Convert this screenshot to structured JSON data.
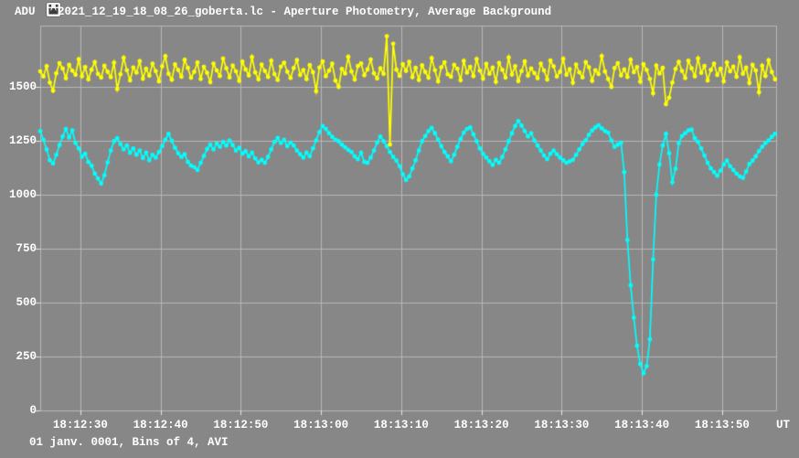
{
  "window": {
    "title": "2021_12_19_18_08_26_goberta.lc - Aperture Photometry, Average Background"
  },
  "axes": {
    "y_unit_label": "ADU",
    "x_unit_label": "UT",
    "y_ticks": [
      {
        "value": 0,
        "label": "0"
      },
      {
        "value": 250,
        "label": "250"
      },
      {
        "value": 500,
        "label": "500"
      },
      {
        "value": 750,
        "label": "750"
      },
      {
        "value": 1000,
        "label": "1000"
      },
      {
        "value": 1250,
        "label": "1250"
      },
      {
        "value": 1500,
        "label": "1500"
      }
    ],
    "x_ticks": [
      {
        "t": 5,
        "label": "18:12:30"
      },
      {
        "t": 15,
        "label": "18:12:40"
      },
      {
        "t": 25,
        "label": "18:12:50"
      },
      {
        "t": 35,
        "label": "18:13:00"
      },
      {
        "t": 45,
        "label": "18:13:10"
      },
      {
        "t": 55,
        "label": "18:13:20"
      },
      {
        "t": 65,
        "label": "18:13:30"
      },
      {
        "t": 75,
        "label": "18:13:40"
      },
      {
        "t": 85,
        "label": "18:13:50"
      }
    ]
  },
  "footer": {
    "text": "01 janv. 0001, Bins of 4, AVI"
  },
  "colors": {
    "background": "#878787",
    "grid": "#b8b8b8",
    "tick": "#e6e6e6",
    "text": "#ffffff",
    "yellow_series": "#ffff00",
    "cyan_series": "#00ffff"
  },
  "chart_data": {
    "type": "line",
    "title": "2021_12_19_18_08_26_goberta.lc - Aperture Photometry, Average Background",
    "xlabel": "UT",
    "ylabel": "ADU",
    "x_origin_time": "18:12:25",
    "dt_seconds": 0.4,
    "xlim": [
      0,
      91.74
    ],
    "ylim": [
      0,
      1784
    ],
    "grid": true,
    "legend": "none",
    "series": [
      {
        "name": "cyan",
        "color": "#00ffff",
        "values": [
          1295,
          1255,
          1210,
          1160,
          1145,
          1185,
          1230,
          1270,
          1305,
          1265,
          1298,
          1240,
          1215,
          1175,
          1190,
          1152,
          1135,
          1098,
          1075,
          1052,
          1090,
          1150,
          1205,
          1248,
          1262,
          1235,
          1210,
          1228,
          1195,
          1215,
          1185,
          1205,
          1170,
          1195,
          1160,
          1185,
          1172,
          1198,
          1225,
          1255,
          1282,
          1250,
          1218,
          1192,
          1175,
          1188,
          1152,
          1135,
          1128,
          1115,
          1148,
          1180,
          1212,
          1232,
          1210,
          1238,
          1222,
          1245,
          1228,
          1252,
          1230,
          1205,
          1218,
          1190,
          1202,
          1178,
          1195,
          1168,
          1150,
          1162,
          1148,
          1175,
          1210,
          1245,
          1263,
          1240,
          1255,
          1225,
          1242,
          1228,
          1205,
          1188,
          1172,
          1195,
          1178,
          1215,
          1252,
          1290,
          1318,
          1305,
          1285,
          1268,
          1255,
          1248,
          1232,
          1220,
          1208,
          1198,
          1178,
          1165,
          1195,
          1152,
          1148,
          1172,
          1205,
          1242,
          1270,
          1248,
          1225,
          1198,
          1175,
          1158,
          1132,
          1095,
          1068,
          1085,
          1122,
          1160,
          1205,
          1248,
          1272,
          1295,
          1310,
          1285,
          1255,
          1225,
          1198,
          1178,
          1155,
          1185,
          1222,
          1258,
          1288,
          1305,
          1312,
          1280,
          1248,
          1215,
          1190,
          1172,
          1155,
          1138,
          1162,
          1148,
          1175,
          1210,
          1248,
          1285,
          1318,
          1342,
          1320,
          1295,
          1270,
          1285,
          1252,
          1228,
          1205,
          1182,
          1165,
          1190,
          1205,
          1188,
          1172,
          1160,
          1148,
          1155,
          1162,
          1185,
          1210,
          1235,
          1252,
          1278,
          1298,
          1312,
          1322,
          1308,
          1295,
          1288,
          1252,
          1222,
          1232,
          1242,
          1105,
          790,
          580,
          430,
          300,
          215,
          172,
          205,
          330,
          700,
          1000,
          1140,
          1228,
          1282,
          1192,
          1058,
          1120,
          1238,
          1272,
          1285,
          1298,
          1302,
          1262,
          1245,
          1215,
          1182,
          1148,
          1122,
          1105,
          1088,
          1112,
          1140,
          1158,
          1132,
          1115,
          1098,
          1085,
          1078,
          1108,
          1142,
          1158,
          1178,
          1202,
          1222,
          1240,
          1252,
          1268,
          1282
        ]
      },
      {
        "name": "yellow",
        "color": "#ffff00",
        "values": [
          1572,
          1548,
          1596,
          1520,
          1482,
          1563,
          1610,
          1585,
          1540,
          1602,
          1575,
          1556,
          1628,
          1549,
          1592,
          1535,
          1580,
          1615,
          1560,
          1543,
          1598,
          1570,
          1545,
          1612,
          1490,
          1558,
          1635,
          1577,
          1530,
          1590,
          1566,
          1619,
          1538,
          1584,
          1552,
          1607,
          1573,
          1526,
          1595,
          1642,
          1561,
          1533,
          1604,
          1578,
          1547,
          1625,
          1588,
          1542,
          1570,
          1613,
          1537,
          1593,
          1565,
          1522,
          1608,
          1576,
          1550,
          1631,
          1586,
          1544,
          1599,
          1572,
          1528,
          1617,
          1581,
          1553,
          1638,
          1567,
          1535,
          1603,
          1574,
          1546,
          1621,
          1559,
          1532,
          1594,
          1612,
          1570,
          1541,
          1587,
          1624,
          1555,
          1578,
          1536,
          1601,
          1568,
          1480,
          1590,
          1618,
          1549,
          1575,
          1607,
          1529,
          1500,
          1583,
          1562,
          1639,
          1571,
          1534,
          1597,
          1609,
          1554,
          1581,
          1627,
          1563,
          1539,
          1586,
          1560,
          1735,
          1233,
          1700,
          1580,
          1551,
          1605,
          1574,
          1616,
          1545,
          1588,
          1532,
          1600,
          1569,
          1542,
          1633,
          1577,
          1525,
          1591,
          1614,
          1558,
          1547,
          1602,
          1584,
          1531,
          1620,
          1566,
          1593,
          1550,
          1629,
          1575,
          1538,
          1606,
          1561,
          1589,
          1523,
          1611,
          1579,
          1543,
          1636,
          1557,
          1596,
          1527,
          1573,
          1618,
          1552,
          1585,
          1564,
          1540,
          1608,
          1576,
          1534,
          1622,
          1595,
          1548,
          1570,
          1630,
          1556,
          1582,
          1519,
          1603,
          1567,
          1544,
          1615,
          1591,
          1528,
          1577,
          1559,
          1642,
          1571,
          1536,
          1500,
          1587,
          1610,
          1553,
          1581,
          1546,
          1626,
          1568,
          1592,
          1524,
          1605,
          1578,
          1537,
          1470,
          1599,
          1562,
          1588,
          1420,
          1450,
          1520,
          1583,
          1616,
          1574,
          1541,
          1621,
          1586,
          1549,
          1632,
          1565,
          1597,
          1530,
          1579,
          1608,
          1555,
          1584,
          1526,
          1613,
          1572,
          1594,
          1547,
          1637,
          1561,
          1589,
          1518,
          1602,
          1576,
          1475,
          1598,
          1550,
          1623,
          1569,
          1535
        ]
      }
    ]
  }
}
